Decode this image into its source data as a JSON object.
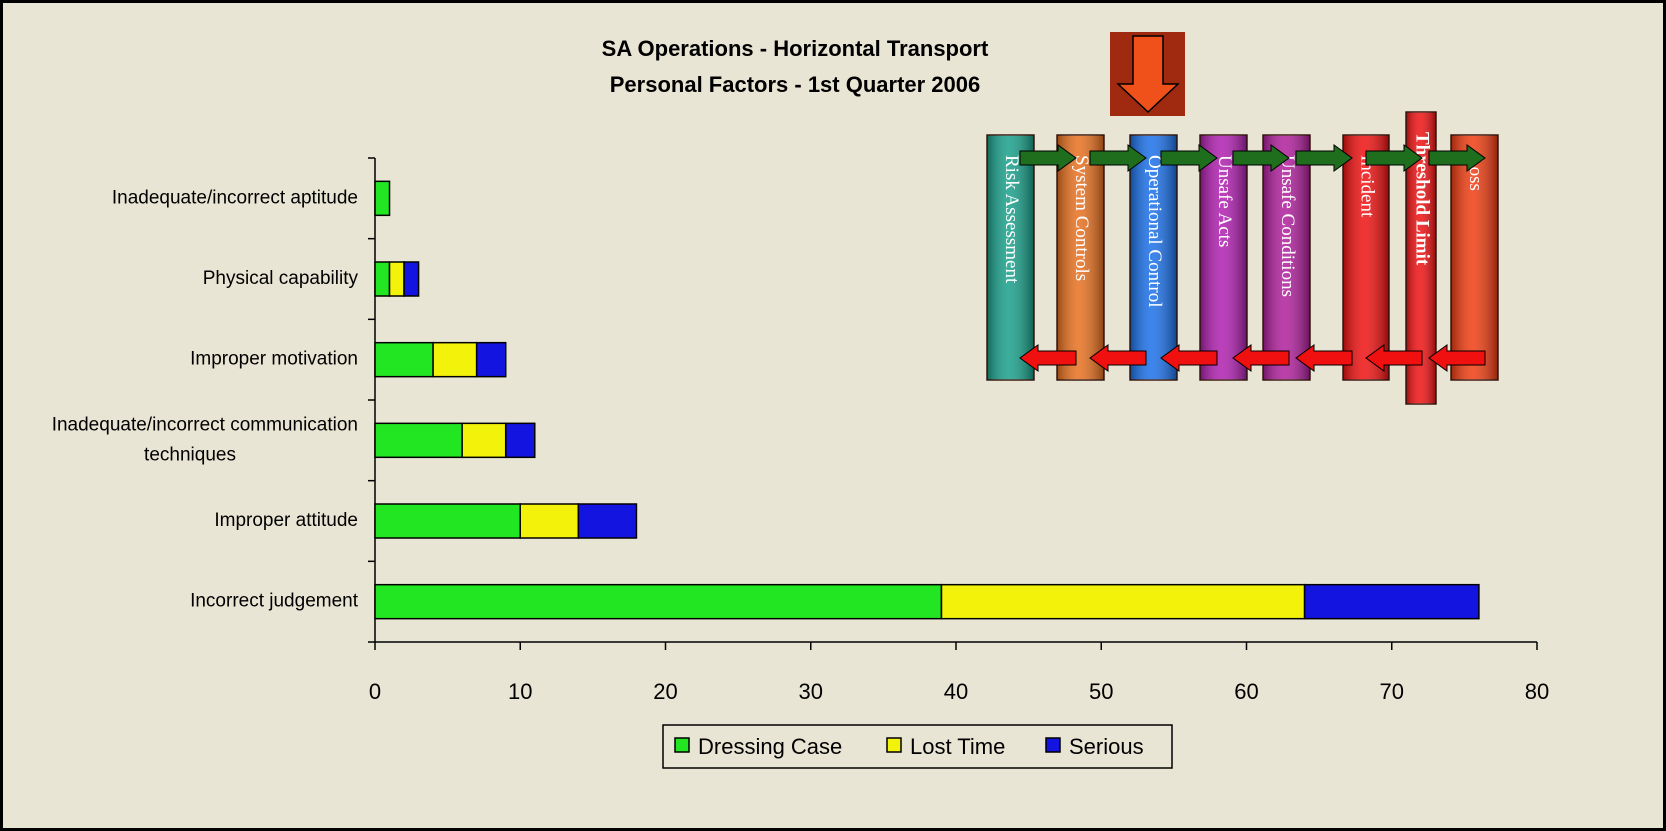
{
  "chart_data": {
    "type": "bar",
    "orientation": "horizontal",
    "stacked": true,
    "title": "SA Operations - Horizontal Transport",
    "subtitle": "Personal Factors - 1st Quarter 2006",
    "categories": [
      "Inadequate/incorrect aptitude",
      "Physical capability",
      "Improper motivation",
      "Inadequate/incorrect communication techniques",
      "Improper attitude",
      "Incorrect judgement"
    ],
    "series": [
      {
        "name": "Dressing Case",
        "color": "#22e622",
        "values": [
          1,
          1,
          4,
          6,
          10,
          39
        ]
      },
      {
        "name": "Lost Time",
        "color": "#f2f20a",
        "values": [
          0,
          1,
          3,
          3,
          4,
          25
        ]
      },
      {
        "name": "Serious",
        "color": "#1414e0",
        "values": [
          0,
          1,
          2,
          2,
          4,
          12
        ]
      }
    ],
    "xlim": [
      0,
      80
    ],
    "xticks": [
      0,
      10,
      20,
      30,
      40,
      50,
      60,
      70,
      80
    ],
    "legend": "bottom",
    "annotations": [
      "Risk Assessment",
      "System Controls",
      "Operational Control",
      "Unsafe Acts",
      "Unsafe Conditions",
      "Incident",
      "Threshold Limit",
      "Loss"
    ]
  }
}
